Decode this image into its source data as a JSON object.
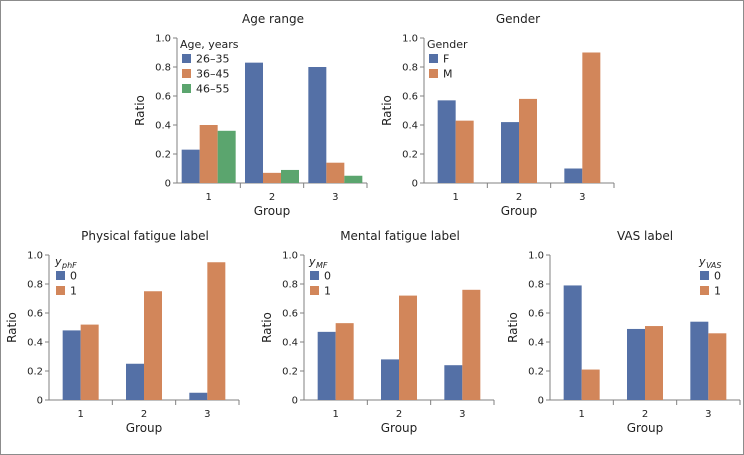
{
  "chart_data": [
    {
      "id": "age",
      "type": "bar",
      "title": "Age range",
      "xlabel": "Group",
      "ylabel": "Ratio",
      "ylim": [
        0,
        1
      ],
      "yticks": [
        "0",
        "0.2",
        "0.4",
        "0.6",
        "0.8",
        "1.0"
      ],
      "categories": [
        "1",
        "2",
        "3"
      ],
      "legend_title": "Age, years",
      "legend_position": "top-left",
      "series": [
        {
          "name": "26–35",
          "color": "#5470a6",
          "values": [
            0.23,
            0.83,
            0.8
          ]
        },
        {
          "name": "36–45",
          "color": "#d2865a",
          "values": [
            0.4,
            0.07,
            0.14
          ]
        },
        {
          "name": "46–55",
          "color": "#5ba56e",
          "values": [
            0.36,
            0.09,
            0.05
          ]
        }
      ]
    },
    {
      "id": "gender",
      "type": "bar",
      "title": "Gender",
      "xlabel": "Group",
      "ylabel": "Ratio",
      "ylim": [
        0,
        1
      ],
      "yticks": [
        "0",
        "0.2",
        "0.4",
        "0.6",
        "0.8",
        "1.0"
      ],
      "categories": [
        "1",
        "2",
        "3"
      ],
      "legend_title": "Gender",
      "legend_position": "top-left",
      "series": [
        {
          "name": "F",
          "color": "#5470a6",
          "values": [
            0.57,
            0.42,
            0.1
          ]
        },
        {
          "name": "M",
          "color": "#d2865a",
          "values": [
            0.43,
            0.58,
            0.9
          ]
        }
      ]
    },
    {
      "id": "phys",
      "type": "bar",
      "title": "Physical fatigue label",
      "xlabel": "Group",
      "ylabel": "Ratio",
      "ylim": [
        0,
        1
      ],
      "yticks": [
        "0",
        "0.2",
        "0.4",
        "0.6",
        "0.8",
        "1.0"
      ],
      "categories": [
        "1",
        "2",
        "3"
      ],
      "legend_title": "y",
      "legend_title_sub": "phF",
      "legend_position": "top-left",
      "series": [
        {
          "name": "0",
          "color": "#5470a6",
          "values": [
            0.48,
            0.25,
            0.05
          ]
        },
        {
          "name": "1",
          "color": "#d2865a",
          "values": [
            0.52,
            0.75,
            0.95
          ]
        }
      ]
    },
    {
      "id": "mental",
      "type": "bar",
      "title": "Mental fatigue label",
      "xlabel": "Group",
      "ylabel": "Ratio",
      "ylim": [
        0,
        1
      ],
      "yticks": [
        "0",
        "0.2",
        "0.4",
        "0.6",
        "0.8",
        "1.0"
      ],
      "categories": [
        "1",
        "2",
        "3"
      ],
      "legend_title": "y",
      "legend_title_sub": "MF",
      "legend_position": "top-left",
      "series": [
        {
          "name": "0",
          "color": "#5470a6",
          "values": [
            0.47,
            0.28,
            0.24
          ]
        },
        {
          "name": "1",
          "color": "#d2865a",
          "values": [
            0.53,
            0.72,
            0.76
          ]
        }
      ]
    },
    {
      "id": "vas",
      "type": "bar",
      "title": "VAS label",
      "xlabel": "Group",
      "ylabel": "Ratio",
      "ylim": [
        0,
        1
      ],
      "yticks": [
        "0",
        "0.2",
        "0.4",
        "0.6",
        "0.8",
        "1.0"
      ],
      "categories": [
        "1",
        "2",
        "3"
      ],
      "legend_title": "y",
      "legend_title_sub": "VAS",
      "legend_position": "top-right",
      "series": [
        {
          "name": "0",
          "color": "#5470a6",
          "values": [
            0.79,
            0.49,
            0.54
          ]
        },
        {
          "name": "1",
          "color": "#d2865a",
          "values": [
            0.21,
            0.51,
            0.46
          ]
        }
      ]
    }
  ]
}
